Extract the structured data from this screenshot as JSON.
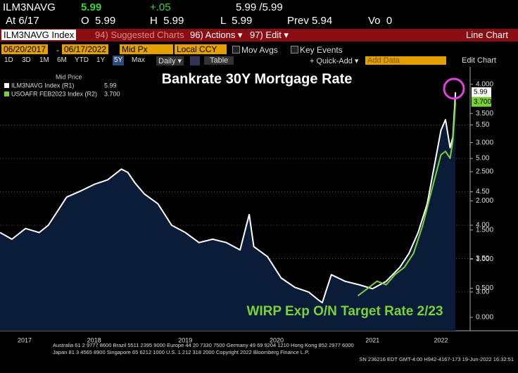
{
  "screen": {
    "ticker": "ILM3NAVG",
    "last": "5.99",
    "change": "+.05",
    "bidask": "5.99 /5.99",
    "at": "At 6/17",
    "open": "O  5.99",
    "high": "H  5.99",
    "low": "L  5.99",
    "prev": "Prev 5.94",
    "volume": "Vo  0",
    "security": "ILM3NAVG Index",
    "suggested": "94) Suggested Charts",
    "actions": "96) Actions ▾",
    "edit": "97) Edit ▾",
    "chart_kind": "Line Chart",
    "start_date": "06/20/2017",
    "dash": "-",
    "end_date": "06/17/2022",
    "field": "Mid Px",
    "currency": "Local CCY",
    "mov_avgs": "Mov Avgs",
    "key_events": "Key Events",
    "periods": [
      "1D",
      "3D",
      "1M",
      "6M",
      "YTD",
      "1Y",
      "5Y",
      "Max"
    ],
    "frequency": "Daily ▾",
    "table": "Table",
    "quick_add": "+ Quick-Add ▾",
    "add_data": "Add Data",
    "edit_chart": "Edit Chart",
    "footer": [
      "Australia 61 2 9777 8600 Brazil 5511 2395 9000 Europe 44 20 7330 7500 Germany 49 69 9204 1210 Hong Kong 852 2977 6000",
      "Japan 81 3 4565 8900      Singapore 65 6212 1000      U.S. 1 212 318 2000          Copyright 2022 Bloomberg Finance L.P.",
      "SN 236216 EDT  GMT-4:00 H942-4167-173 19-Jun-2022 16:32:51"
    ]
  },
  "chart_data": {
    "type": "line",
    "title": "Bankrate 30Y Mortgage Rate",
    "annotation": "WIRP Exp O/N Target Rate 2/23",
    "legend_title": "Mid Price",
    "legend": "top-left",
    "grid": true,
    "xlim": [
      2017.47,
      2022.62
    ],
    "xticks": [
      {
        "value": 2017.74,
        "label": "2017"
      },
      {
        "value": 2018.5,
        "label": "2018"
      },
      {
        "value": 2019.5,
        "label": "2019"
      },
      {
        "value": 2020.5,
        "label": "2020"
      },
      {
        "value": 2021.55,
        "label": "2021"
      },
      {
        "value": 2022.3,
        "label": "2022"
      }
    ],
    "ylim": [
      2.42,
      6.37
    ],
    "yticks": [
      {
        "value": 3,
        "label": "3.00"
      },
      {
        "value": 3.5,
        "label": "3.50"
      },
      {
        "value": 4,
        "label": "4.00"
      },
      {
        "value": 4.5,
        "label": "4.50"
      },
      {
        "value": 5,
        "label": "5.00"
      },
      {
        "value": 5.5,
        "label": "5.50"
      }
    ],
    "y2lim": [
      -0.23,
      4.3
    ],
    "y2ticks": [
      {
        "value": 0,
        "label": "0.000"
      },
      {
        "value": 0.5,
        "label": "0.500"
      },
      {
        "value": 1,
        "label": "1.000"
      },
      {
        "value": 1.5,
        "label": "1.500"
      },
      {
        "value": 2,
        "label": "2.000"
      },
      {
        "value": 2.5,
        "label": "2.500"
      },
      {
        "value": 3,
        "label": "3.000"
      },
      {
        "value": 3.5,
        "label": "3.500"
      },
      {
        "value": 4,
        "label": "4.000"
      }
    ],
    "series": [
      {
        "name": "ILM3NAVG Index (R1)",
        "color": "#ffffff",
        "area": "#0b1c38",
        "axis": "y",
        "x": [
          2017.47,
          2017.6,
          2017.75,
          2017.9,
          2018.0,
          2018.1,
          2018.2,
          2018.35,
          2018.5,
          2018.65,
          2018.8,
          2018.87,
          2018.95,
          2019.05,
          2019.2,
          2019.35,
          2019.5,
          2019.65,
          2019.8,
          2019.95,
          2020.1,
          2020.2,
          2020.25,
          2020.4,
          2020.55,
          2020.7,
          2020.85,
          2020.95,
          2021.0,
          2021.1,
          2021.25,
          2021.4,
          2021.55,
          2021.7,
          2021.85,
          2021.95,
          2022.05,
          2022.15,
          2022.25,
          2022.3,
          2022.35,
          2022.4,
          2022.43,
          2022.46
        ],
        "values": [
          3.89,
          3.79,
          3.95,
          3.89,
          4.0,
          4.21,
          4.42,
          4.51,
          4.61,
          4.68,
          4.84,
          4.79,
          4.63,
          4.47,
          4.32,
          4.0,
          3.89,
          3.74,
          3.79,
          3.74,
          3.63,
          4.16,
          3.68,
          3.53,
          3.21,
          3.07,
          3.0,
          2.89,
          2.84,
          3.26,
          3.16,
          3.11,
          3.05,
          3.16,
          3.37,
          3.58,
          3.89,
          4.32,
          5.05,
          5.42,
          5.58,
          5.16,
          5.32,
          5.99
        ]
      },
      {
        "name": "USOAFR FEB2023 Index (R2)",
        "color": "#7bd13a",
        "axis": "y2",
        "x": [
          2021.39,
          2021.5,
          2021.6,
          2021.7,
          2021.8,
          2021.9,
          2022.0,
          2022.1,
          2022.2,
          2022.3,
          2022.35,
          2022.4,
          2022.43,
          2022.46
        ],
        "values": [
          0.37,
          0.5,
          0.62,
          0.56,
          0.74,
          0.86,
          1.1,
          1.58,
          2.19,
          2.79,
          2.85,
          2.73,
          3.03,
          3.7
        ],
        "value_labels": [
          null,
          null,
          null,
          null,
          null,
          null,
          null,
          null,
          null,
          null,
          null,
          null,
          null,
          "3.700"
        ]
      }
    ]
  }
}
